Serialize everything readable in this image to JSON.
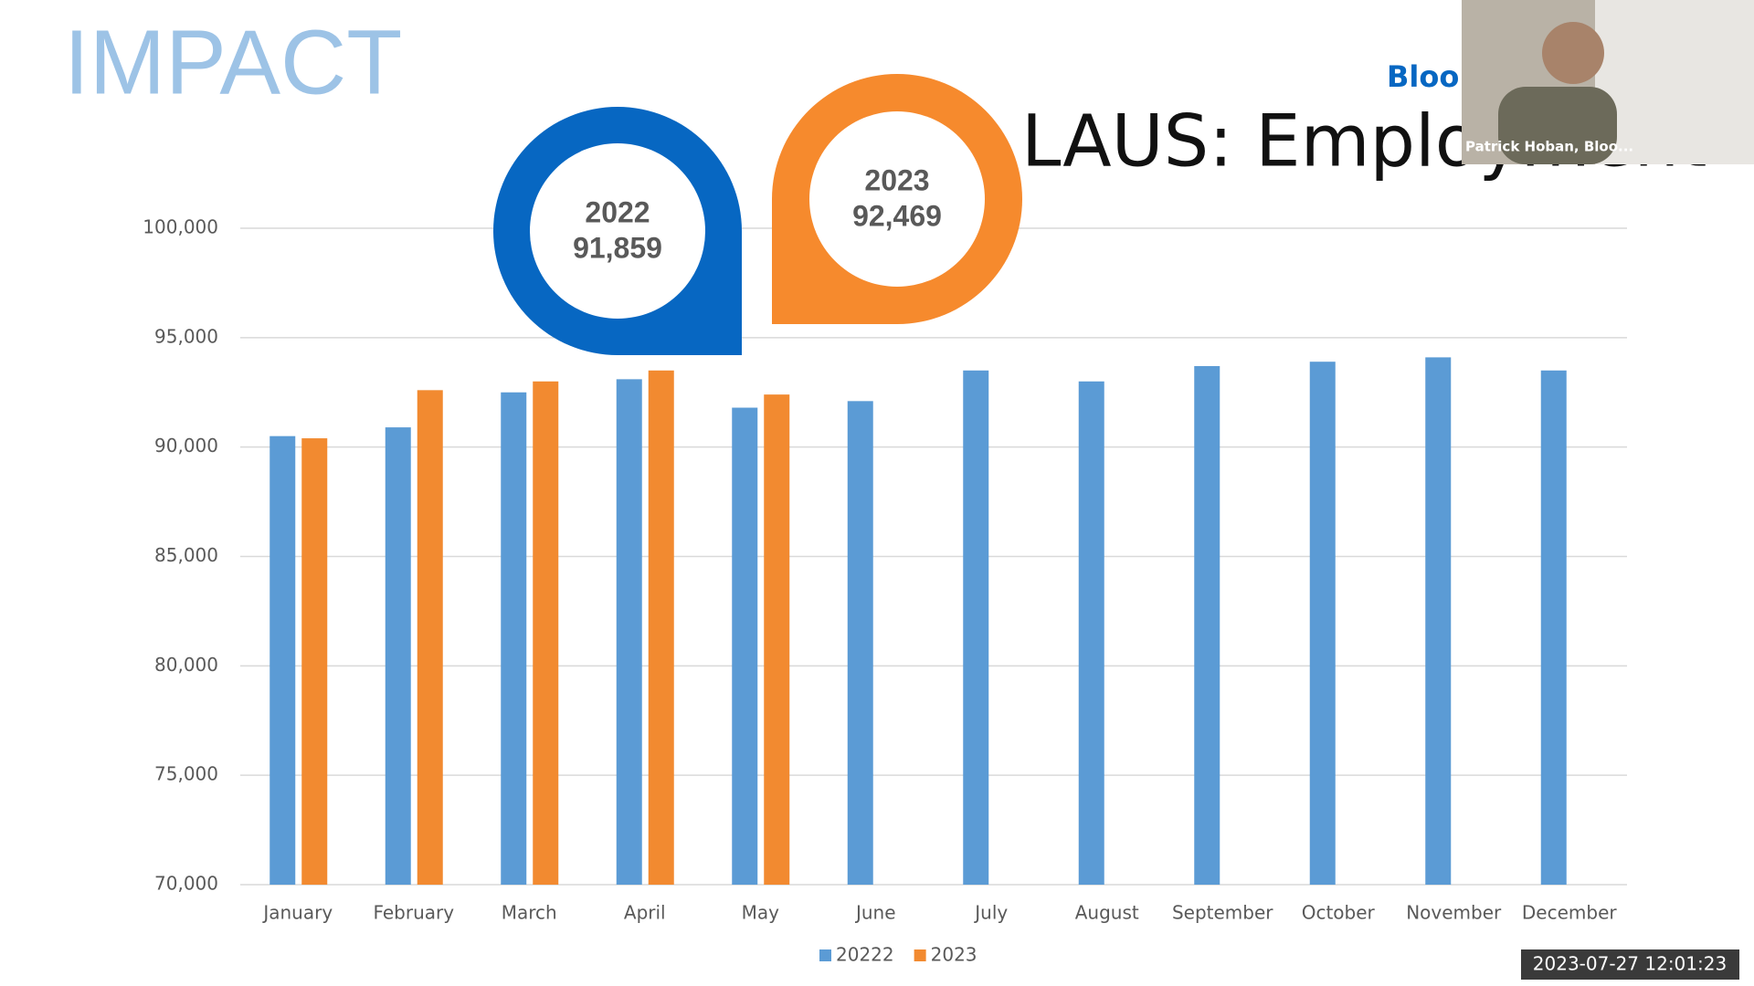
{
  "header": {
    "title": "IMPACT",
    "slide_title": "LAUS: Employment",
    "brand": "Bloom"
  },
  "callouts": [
    {
      "year": "2022",
      "value": "91,859",
      "color": "#0767c2"
    },
    {
      "year": "2023",
      "value": "92,469",
      "color": "#f68a2d"
    }
  ],
  "video": {
    "name": "Patrick Hoban, Bloo..."
  },
  "timestamp": "2023-07-27 12:01:23",
  "chart_data": {
    "type": "bar",
    "categories": [
      "January",
      "February",
      "March",
      "April",
      "May",
      "June",
      "July",
      "August",
      "September",
      "October",
      "November",
      "December"
    ],
    "series": [
      {
        "name": "20222",
        "color": "#5b9bd5",
        "values": [
          90500,
          90900,
          92500,
          93100,
          91800,
          92100,
          93500,
          93000,
          93700,
          93900,
          94100,
          93500
        ]
      },
      {
        "name": "2023",
        "color": "#f28a30",
        "values": [
          90400,
          92600,
          93000,
          93500,
          92400,
          null,
          null,
          null,
          null,
          null,
          null,
          null
        ]
      }
    ],
    "ylim": [
      70000,
      100000
    ],
    "yticks": [
      {
        "value": 70000,
        "label": "70,000"
      },
      {
        "value": 75000,
        "label": "75,000"
      },
      {
        "value": 80000,
        "label": "80,000"
      },
      {
        "value": 85000,
        "label": "85,000"
      },
      {
        "value": 90000,
        "label": "90,000"
      },
      {
        "value": 95000,
        "label": "95,000"
      },
      {
        "value": 100000,
        "label": "100,000"
      }
    ],
    "grid": true,
    "legend": "bottom"
  }
}
